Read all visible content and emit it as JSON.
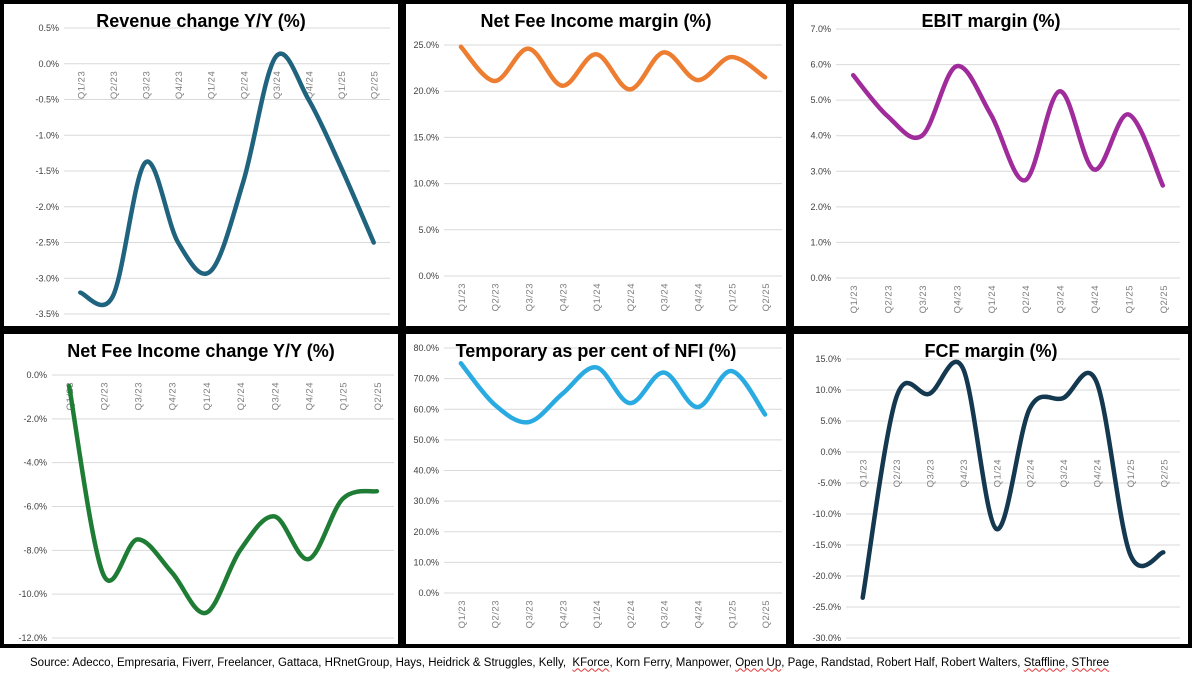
{
  "chart_data": [
    {
      "id": "revenue-change",
      "type": "line",
      "title": "Revenue change Y/Y (%)",
      "categories": [
        "Q1/23",
        "Q2/23",
        "Q3/23",
        "Q4/23",
        "Q1/24",
        "Q2/24",
        "Q3/24",
        "Q4/24",
        "Q1/25",
        "Q2/25"
      ],
      "values": [
        -3.2,
        -3.25,
        -1.38,
        -2.5,
        -2.9,
        -1.65,
        0.1,
        -0.5,
        -1.45,
        -2.5
      ],
      "ylabel": "",
      "xlabel": "",
      "ylim": [
        -3.5,
        0.5
      ],
      "ytick_step": 0.5,
      "tick_format": "percent-1dp",
      "x_label_anchor": "zero-line",
      "grid": "on",
      "legend": "none",
      "line_color": "#20637f"
    },
    {
      "id": "nfi-margin",
      "type": "line",
      "title": "Net Fee Income margin (%)",
      "categories": [
        "Q1/23",
        "Q2/23",
        "Q3/23",
        "Q4/23",
        "Q1/24",
        "Q2/24",
        "Q3/24",
        "Q4/24",
        "Q1/25",
        "Q2/25"
      ],
      "values": [
        24.8,
        21.1,
        24.6,
        20.6,
        24.0,
        20.2,
        24.2,
        21.2,
        23.7,
        21.5
      ],
      "ylabel": "",
      "xlabel": "",
      "ylim": [
        0,
        25
      ],
      "ytick_step": 5,
      "tick_format": "percent-1dp",
      "x_label_anchor": "zero-line",
      "grid": "on",
      "legend": "none",
      "line_color": "#ed7d31"
    },
    {
      "id": "ebit-margin",
      "type": "line",
      "title": "EBIT margin (%)",
      "categories": [
        "Q1/23",
        "Q2/23",
        "Q3/23",
        "Q4/23",
        "Q1/24",
        "Q2/24",
        "Q3/24",
        "Q4/24",
        "Q1/25",
        "Q2/25"
      ],
      "values": [
        5.7,
        4.55,
        4.0,
        5.95,
        4.6,
        2.75,
        5.25,
        3.05,
        4.6,
        2.6
      ],
      "ylabel": "",
      "xlabel": "",
      "ylim": [
        0,
        7
      ],
      "ytick_step": 1,
      "tick_format": "percent-1dp",
      "x_label_anchor": "zero-line",
      "grid": "on",
      "legend": "none",
      "line_color": "#a02b9b"
    },
    {
      "id": "nfi-change",
      "type": "line",
      "title": "Net Fee Income change Y/Y (%)",
      "categories": [
        "Q1/23",
        "Q2/23",
        "Q3/23",
        "Q4/23",
        "Q1/24",
        "Q2/24",
        "Q3/24",
        "Q4/24",
        "Q1/25",
        "Q2/25"
      ],
      "values": [
        -0.5,
        -9.1,
        -7.5,
        -9.0,
        -10.85,
        -8.0,
        -6.45,
        -8.4,
        -5.65,
        -5.3
      ],
      "ylabel": "",
      "xlabel": "",
      "ylim": [
        -12,
        0
      ],
      "ytick_step": 2,
      "tick_format": "percent-1dp",
      "x_label_anchor": "zero-line",
      "grid": "on",
      "legend": "none",
      "line_color": "#1e7c34"
    },
    {
      "id": "temporary-pct-nfi",
      "type": "line",
      "title": "Temporary as per cent of NFI (%)",
      "categories": [
        "Q1/23",
        "Q2/23",
        "Q3/23",
        "Q4/23",
        "Q1/24",
        "Q2/24",
        "Q3/24",
        "Q4/24",
        "Q1/25",
        "Q2/25"
      ],
      "values": [
        75.0,
        61.5,
        55.8,
        65.0,
        73.7,
        62.0,
        72.0,
        60.7,
        72.5,
        58.3
      ],
      "ylabel": "",
      "xlabel": "",
      "ylim": [
        0,
        80
      ],
      "ytick_step": 10,
      "tick_format": "percent-1dp",
      "x_label_anchor": "zero-line",
      "grid": "on",
      "legend": "none",
      "line_color": "#29abe2"
    },
    {
      "id": "fcf-margin",
      "type": "line",
      "title": "FCF margin (%)",
      "categories": [
        "Q1/23",
        "Q2/23",
        "Q3/23",
        "Q4/23",
        "Q1/24",
        "Q2/24",
        "Q3/24",
        "Q4/24",
        "Q1/25",
        "Q2/25"
      ],
      "values": [
        -23.5,
        8.7,
        9.4,
        13.5,
        -12.4,
        7.0,
        8.7,
        11.3,
        -16.4,
        -16.2
      ],
      "ylabel": "",
      "xlabel": "",
      "ylim": [
        -30,
        15
      ],
      "ytick_step": 5,
      "tick_format": "percent-1dp",
      "x_label_anchor": "zero-line",
      "grid": "on",
      "legend": "none",
      "line_color": "#14384f"
    }
  ],
  "source_note": {
    "segments": [
      {
        "text": "Source: Adecco, Empresaria, Fiverr, Freelancer, Gattaca, HRnetGroup, Hays, Heidrick & Struggles, Kelly,  ",
        "flagged": false
      },
      {
        "text": "KForce",
        "flagged": true
      },
      {
        "text": ", Korn Ferry, Manpower, ",
        "flagged": false
      },
      {
        "text": "Open Up",
        "flagged": true
      },
      {
        "text": ", Page, Randstad, Robert Half, Robert Walters, ",
        "flagged": false
      },
      {
        "text": "Staffline",
        "flagged": true
      },
      {
        "text": ", ",
        "flagged": false
      },
      {
        "text": "SThree",
        "flagged": true
      }
    ]
  }
}
